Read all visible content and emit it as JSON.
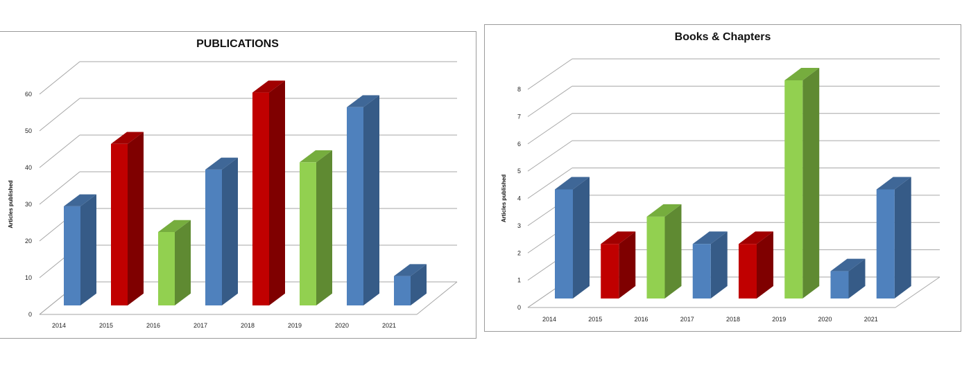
{
  "chart_data": [
    {
      "type": "bar",
      "title": "PUBLICATIONS",
      "ylabel": "Articles published",
      "xlabel": "",
      "categories": [
        "2014",
        "2015",
        "2016",
        "2017",
        "2018",
        "2019",
        "2020",
        "2021"
      ],
      "values": [
        27,
        44,
        20,
        37,
        58,
        39,
        54,
        8
      ],
      "bar_colors": [
        "#4f81bd",
        "#c00000",
        "#92d050",
        "#4f81bd",
        "#c00000",
        "#92d050",
        "#4f81bd",
        "#4f81bd"
      ],
      "ylim": [
        0,
        60
      ],
      "yticks": [
        "0",
        "10",
        "20",
        "30",
        "40",
        "50",
        "60"
      ],
      "grid": true,
      "legend": "none"
    },
    {
      "type": "bar",
      "title": "Books & Chapters",
      "ylabel": "Articles published",
      "xlabel": "",
      "categories": [
        "2014",
        "2015",
        "2016",
        "2017",
        "2018",
        "2019",
        "2020",
        "2021"
      ],
      "values": [
        4,
        2,
        3,
        2,
        2,
        8,
        1,
        4
      ],
      "bar_colors": [
        "#4f81bd",
        "#c00000",
        "#92d050",
        "#4f81bd",
        "#c00000",
        "#92d050",
        "#4f81bd",
        "#4f81bd"
      ],
      "ylim": [
        0,
        8
      ],
      "yticks": [
        "0",
        "1",
        "2",
        "3",
        "4",
        "5",
        "6",
        "7",
        "8"
      ],
      "grid": true,
      "legend": "none"
    }
  ]
}
